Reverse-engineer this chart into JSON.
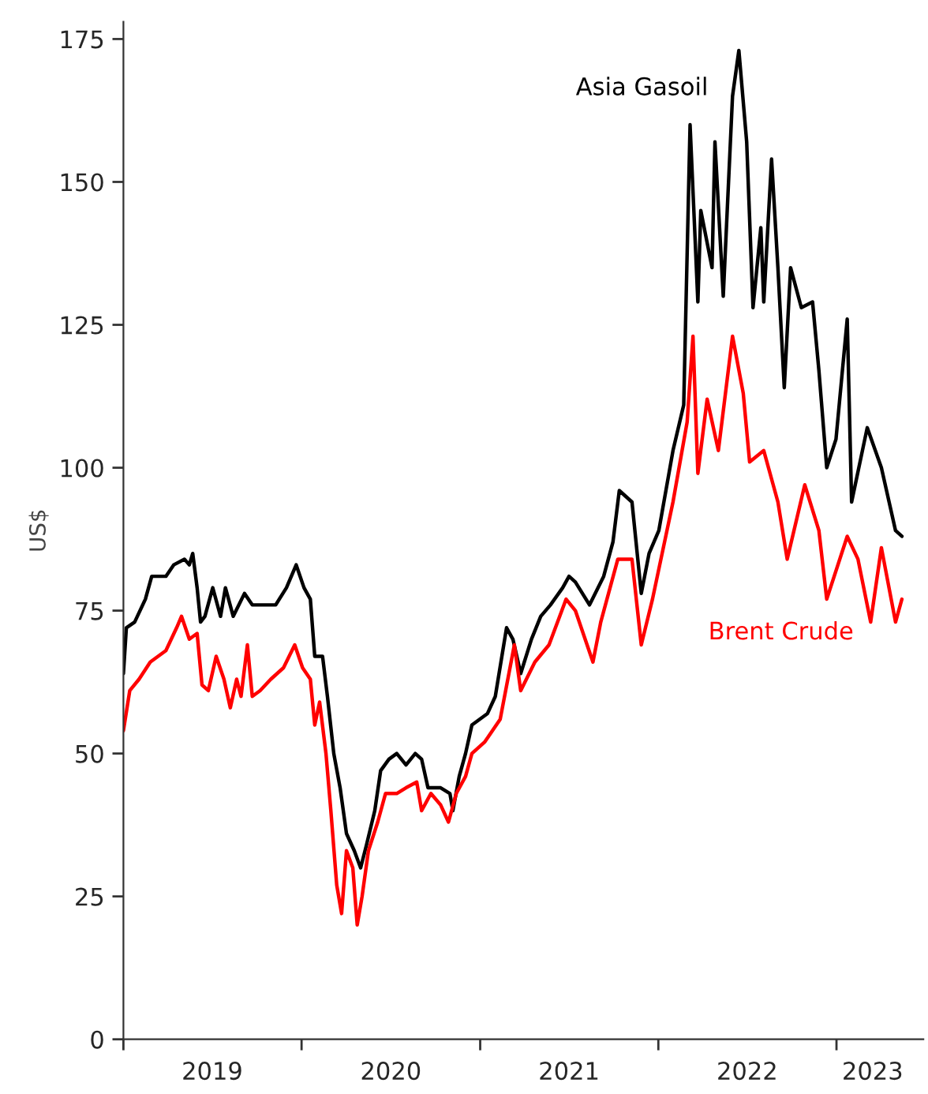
{
  "chart_data": {
    "type": "line",
    "ylabel": "US$",
    "xlim": [
      "2019-01-01",
      "2023-06-28"
    ],
    "ylim": [
      0,
      178
    ],
    "yticks": [
      0,
      25,
      50,
      75,
      100,
      125,
      150,
      175
    ],
    "xticks": [
      {
        "value": "2019-01-01",
        "label": null
      },
      {
        "value": "2020-01-01",
        "label": null
      },
      {
        "value": "2021-01-01",
        "label": null
      },
      {
        "value": "2022-01-01",
        "label": null
      },
      {
        "value": "2023-01-01",
        "label": null
      },
      {
        "value": "2019-07-02",
        "label": "2019"
      },
      {
        "value": "2020-07-02",
        "label": "2020"
      },
      {
        "value": "2021-07-02",
        "label": "2021"
      },
      {
        "value": "2022-07-02",
        "label": "2022"
      },
      {
        "value": "2023-03-16",
        "label": "2023"
      }
    ],
    "grid": false,
    "legend": false,
    "marker": "none",
    "line_style": "solid",
    "series": [
      {
        "name": "Asia Gasoil",
        "color": "#000000",
        "x": [
          "2019-01-01",
          "2019-01-07",
          "2019-01-24",
          "2019-02-15",
          "2019-02-28",
          "2019-03-29",
          "2019-04-14",
          "2019-05-06",
          "2019-05-16",
          "2019-05-23",
          "2019-06-01",
          "2019-06-08",
          "2019-06-17",
          "2019-07-03",
          "2019-07-19",
          "2019-07-29",
          "2019-08-14",
          "2019-09-06",
          "2019-09-22",
          "2019-10-17",
          "2019-11-09",
          "2019-12-01",
          "2019-12-21",
          "2020-01-06",
          "2020-01-19",
          "2020-01-28",
          "2020-02-13",
          "2020-02-23",
          "2020-03-07",
          "2020-03-20",
          "2020-04-02",
          "2020-04-18",
          "2020-05-01",
          "2020-05-13",
          "2020-05-30",
          "2020-06-11",
          "2020-06-28",
          "2020-07-14",
          "2020-08-02",
          "2020-08-21",
          "2020-09-03",
          "2020-09-16",
          "2020-10-12",
          "2020-10-31",
          "2020-11-06",
          "2020-11-19",
          "2020-12-02",
          "2020-12-15",
          "2021-01-16",
          "2021-02-01",
          "2021-02-24",
          "2021-03-09",
          "2021-03-25",
          "2021-04-16",
          "2021-05-05",
          "2021-05-25",
          "2021-06-19",
          "2021-07-02",
          "2021-07-15",
          "2021-08-13",
          "2021-09-11",
          "2021-09-30",
          "2021-10-13",
          "2021-11-08",
          "2021-11-27",
          "2021-12-13",
          "2022-01-02",
          "2022-01-31",
          "2022-02-22",
          "2022-03-07",
          "2022-03-23",
          "2022-03-29",
          "2022-04-21",
          "2022-04-27",
          "2022-05-14",
          "2022-06-02",
          "2022-06-15",
          "2022-07-01",
          "2022-07-14",
          "2022-07-30",
          "2022-08-05",
          "2022-08-21",
          "2022-09-03",
          "2022-09-16",
          "2022-09-29",
          "2022-10-21",
          "2022-11-13",
          "2022-11-26",
          "2022-12-12",
          "2022-12-31",
          "2023-01-23",
          "2023-02-01",
          "2023-03-05",
          "2023-04-03",
          "2023-05-02",
          "2023-05-15"
        ],
        "values": [
          64,
          72,
          73,
          77,
          81,
          81,
          83,
          84,
          83,
          85,
          79,
          73,
          74,
          79,
          74,
          79,
          74,
          78,
          76,
          76,
          76,
          79,
          83,
          79,
          77,
          67,
          67,
          60,
          50,
          44,
          36,
          33,
          30,
          34,
          40,
          47,
          49,
          50,
          48,
          50,
          49,
          44,
          44,
          43,
          40,
          46,
          50,
          55,
          57,
          60,
          72,
          70,
          64,
          70,
          74,
          76,
          79,
          81,
          80,
          76,
          81,
          87,
          96,
          94,
          78,
          85,
          89,
          103,
          111,
          160,
          129,
          145,
          135,
          157,
          130,
          165,
          173,
          157,
          128,
          142,
          129,
          154,
          135,
          114,
          135,
          128,
          129,
          117,
          100,
          105,
          126,
          94,
          107,
          100,
          89,
          88
        ]
      },
      {
        "name": "Brent Crude",
        "color": "#ff0000",
        "x": [
          "2019-01-01",
          "2019-01-14",
          "2019-02-02",
          "2019-02-25",
          "2019-03-29",
          "2019-04-20",
          "2019-04-30",
          "2019-05-16",
          "2019-06-01",
          "2019-06-11",
          "2019-06-24",
          "2019-07-10",
          "2019-07-26",
          "2019-08-08",
          "2019-08-21",
          "2019-08-30",
          "2019-09-12",
          "2019-09-22",
          "2019-10-08",
          "2019-10-30",
          "2019-11-25",
          "2019-12-18",
          "2020-01-03",
          "2020-01-19",
          "2020-01-28",
          "2020-02-07",
          "2020-02-20",
          "2020-03-01",
          "2020-03-13",
          "2020-03-23",
          "2020-04-02",
          "2020-04-15",
          "2020-04-24",
          "2020-05-04",
          "2020-05-17",
          "2020-06-05",
          "2020-06-21",
          "2020-07-14",
          "2020-08-02",
          "2020-08-24",
          "2020-09-03",
          "2020-09-22",
          "2020-10-12",
          "2020-10-28",
          "2020-11-13",
          "2020-12-02",
          "2020-12-15",
          "2021-01-10",
          "2021-02-11",
          "2021-03-12",
          "2021-03-25",
          "2021-04-23",
          "2021-05-22",
          "2021-06-26",
          "2021-07-15",
          "2021-08-20",
          "2021-09-05",
          "2021-10-10",
          "2021-11-08",
          "2021-11-27",
          "2021-12-20",
          "2022-01-31",
          "2022-03-01",
          "2022-03-13",
          "2022-03-23",
          "2022-04-11",
          "2022-05-04",
          "2022-06-02",
          "2022-06-24",
          "2022-07-07",
          "2022-08-05",
          "2022-09-03",
          "2022-09-22",
          "2022-10-28",
          "2022-11-26",
          "2022-12-12",
          "2023-01-23",
          "2023-02-14",
          "2023-03-12",
          "2023-04-03",
          "2023-05-02",
          "2023-05-15"
        ],
        "values": [
          54,
          61,
          63,
          66,
          68,
          72,
          74,
          70,
          71,
          62,
          61,
          67,
          63,
          58,
          63,
          60,
          69,
          60,
          61,
          63,
          65,
          69,
          65,
          63,
          55,
          59,
          50,
          40,
          27,
          22,
          33,
          30,
          20,
          25,
          33,
          38,
          43,
          43,
          44,
          45,
          40,
          43,
          41,
          38,
          43,
          46,
          50,
          52,
          56,
          69,
          61,
          66,
          69,
          77,
          75,
          66,
          73,
          84,
          84,
          69,
          77,
          94,
          108,
          123,
          99,
          112,
          103,
          123,
          113,
          101,
          103,
          94,
          84,
          97,
          89,
          77,
          88,
          84,
          73,
          86,
          73,
          77
        ]
      }
    ]
  }
}
